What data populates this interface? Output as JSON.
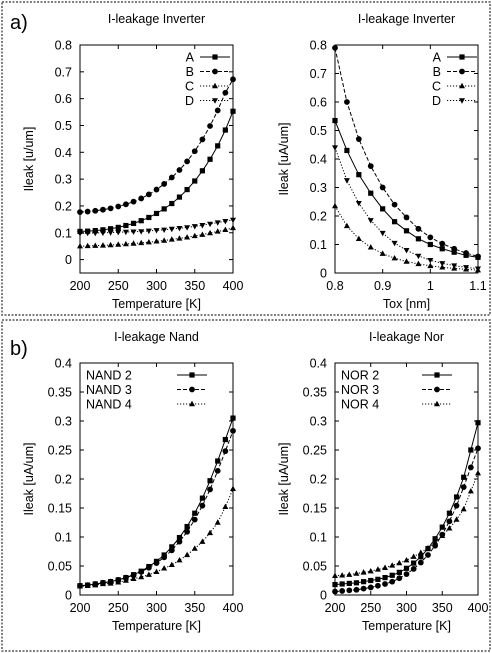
{
  "panels": [
    {
      "label": "a)"
    },
    {
      "label": "b)"
    }
  ],
  "chart_data": [
    {
      "type": "line",
      "title": "I-leakage Inverter",
      "xlabel": "Temperature [K]",
      "ylabel": "Ileak [u/um]",
      "xlim": [
        200,
        400
      ],
      "ylim": [
        -0.05,
        0.8
      ],
      "xticks": [
        200,
        250,
        300,
        350,
        400
      ],
      "yticks": [
        0,
        0.1,
        0.2,
        0.3,
        0.4,
        0.5,
        0.6,
        0.7,
        0.8
      ],
      "legend_position": "top-right",
      "grid": false,
      "x": [
        200,
        210,
        220,
        230,
        240,
        250,
        260,
        270,
        280,
        290,
        300,
        310,
        320,
        330,
        340,
        350,
        360,
        370,
        380,
        390,
        400
      ],
      "series": [
        {
          "name": "A",
          "marker": "square",
          "dash": "solid",
          "values": [
            0.105,
            0.106,
            0.108,
            0.111,
            0.115,
            0.12,
            0.127,
            0.135,
            0.145,
            0.157,
            0.172,
            0.189,
            0.209,
            0.233,
            0.261,
            0.293,
            0.331,
            0.374,
            0.424,
            0.483,
            0.553
          ]
        },
        {
          "name": "B",
          "marker": "circle",
          "dash": "dashed",
          "values": [
            0.177,
            0.179,
            0.182,
            0.186,
            0.191,
            0.198,
            0.206,
            0.216,
            0.228,
            0.243,
            0.261,
            0.282,
            0.306,
            0.334,
            0.366,
            0.404,
            0.448,
            0.498,
            0.556,
            0.622,
            0.672
          ]
        },
        {
          "name": "C",
          "marker": "triangle-up",
          "dash": "dotted",
          "values": [
            0.05,
            0.051,
            0.052,
            0.053,
            0.054,
            0.056,
            0.058,
            0.06,
            0.062,
            0.065,
            0.068,
            0.071,
            0.075,
            0.079,
            0.083,
            0.088,
            0.093,
            0.099,
            0.105,
            0.111,
            0.118
          ]
        },
        {
          "name": "D",
          "marker": "triangle-down",
          "dash": "dotted",
          "values": [
            0.098,
            0.099,
            0.099,
            0.1,
            0.101,
            0.102,
            0.103,
            0.104,
            0.105,
            0.107,
            0.109,
            0.111,
            0.114,
            0.117,
            0.12,
            0.124,
            0.128,
            0.133,
            0.138,
            0.143,
            0.148
          ]
        }
      ]
    },
    {
      "type": "line",
      "title": "I-leakage Inverter",
      "xlabel": "Tox [nm]",
      "ylabel": "Ileak [uA/um]",
      "xlim": [
        0.8,
        1.1
      ],
      "ylim": [
        0,
        0.8
      ],
      "xticks": [
        0.8,
        0.9,
        1,
        1.1
      ],
      "yticks": [
        0,
        0.1,
        0.2,
        0.3,
        0.4,
        0.5,
        0.6,
        0.7,
        0.8
      ],
      "legend_position": "top-right",
      "grid": false,
      "x": [
        0.8,
        0.825,
        0.85,
        0.875,
        0.9,
        0.925,
        0.95,
        0.975,
        1,
        1.025,
        1.05,
        1.075,
        1.1
      ],
      "series": [
        {
          "name": "A",
          "marker": "square",
          "dash": "solid",
          "values": [
            0.535,
            0.43,
            0.345,
            0.28,
            0.225,
            0.18,
            0.148,
            0.12,
            0.1,
            0.085,
            0.073,
            0.062,
            0.055
          ]
        },
        {
          "name": "B",
          "marker": "circle",
          "dash": "dashed",
          "values": [
            0.79,
            0.6,
            0.47,
            0.375,
            0.3,
            0.24,
            0.195,
            0.155,
            0.125,
            0.103,
            0.085,
            0.07,
            0.058
          ]
        },
        {
          "name": "C",
          "marker": "triangle-up",
          "dash": "dotted",
          "values": [
            0.235,
            0.165,
            0.12,
            0.09,
            0.068,
            0.052,
            0.04,
            0.032,
            0.025,
            0.02,
            0.016,
            0.013,
            0.01
          ]
        },
        {
          "name": "D",
          "marker": "triangle-down",
          "dash": "dotted",
          "values": [
            0.44,
            0.325,
            0.245,
            0.185,
            0.14,
            0.105,
            0.08,
            0.06,
            0.045,
            0.034,
            0.026,
            0.02,
            0.015
          ]
        }
      ]
    },
    {
      "type": "line",
      "title": "I-leakage Nand",
      "xlabel": "Temperature [K]",
      "ylabel": "Ileak [uA/um]",
      "xlim": [
        200,
        400
      ],
      "ylim": [
        0,
        0.4
      ],
      "xticks": [
        200,
        250,
        300,
        350,
        400
      ],
      "yticks": [
        0,
        0.05,
        0.1,
        0.15,
        0.2,
        0.25,
        0.3,
        0.35,
        0.4
      ],
      "legend_position": "top-left",
      "grid": false,
      "x": [
        200,
        210,
        220,
        230,
        240,
        250,
        260,
        270,
        280,
        290,
        300,
        310,
        320,
        330,
        340,
        350,
        360,
        370,
        380,
        390,
        400
      ],
      "series": [
        {
          "name": "NAND 2",
          "marker": "square",
          "dash": "solid",
          "values": [
            0.016,
            0.017,
            0.019,
            0.021,
            0.023,
            0.026,
            0.03,
            0.035,
            0.041,
            0.049,
            0.058,
            0.069,
            0.083,
            0.099,
            0.118,
            0.141,
            0.167,
            0.197,
            0.231,
            0.268,
            0.305
          ]
        },
        {
          "name": "NAND 3",
          "marker": "circle",
          "dash": "dashed",
          "values": [
            0.016,
            0.017,
            0.019,
            0.021,
            0.023,
            0.026,
            0.03,
            0.034,
            0.04,
            0.047,
            0.055,
            0.065,
            0.077,
            0.092,
            0.109,
            0.13,
            0.154,
            0.182,
            0.214,
            0.248,
            0.283
          ]
        },
        {
          "name": "NAND 4",
          "marker": "triangle-up",
          "dash": "dotted",
          "values": [
            0.015,
            0.016,
            0.017,
            0.019,
            0.02,
            0.022,
            0.025,
            0.028,
            0.031,
            0.035,
            0.04,
            0.046,
            0.052,
            0.06,
            0.069,
            0.08,
            0.092,
            0.107,
            0.125,
            0.152,
            0.183
          ]
        }
      ]
    },
    {
      "type": "line",
      "title": "I-leakage Nor",
      "xlabel": "Temperature [K]",
      "ylabel": "Ileak [uA/um]",
      "xlim": [
        200,
        400
      ],
      "ylim": [
        0,
        0.4
      ],
      "xticks": [
        200,
        250,
        300,
        350,
        400
      ],
      "yticks": [
        0,
        0.05,
        0.1,
        0.15,
        0.2,
        0.25,
        0.3,
        0.35,
        0.4
      ],
      "legend_position": "top-left",
      "grid": false,
      "x": [
        200,
        210,
        220,
        230,
        240,
        250,
        260,
        270,
        280,
        290,
        300,
        310,
        320,
        330,
        340,
        350,
        360,
        370,
        380,
        390,
        400
      ],
      "series": [
        {
          "name": "NOR 2",
          "marker": "square",
          "dash": "solid",
          "values": [
            0.018,
            0.019,
            0.02,
            0.021,
            0.023,
            0.025,
            0.027,
            0.03,
            0.034,
            0.039,
            0.046,
            0.055,
            0.066,
            0.08,
            0.097,
            0.117,
            0.141,
            0.169,
            0.203,
            0.25,
            0.297
          ]
        },
        {
          "name": "NOR 3",
          "marker": "circle",
          "dash": "dashed",
          "values": [
            0.006,
            0.007,
            0.008,
            0.009,
            0.011,
            0.013,
            0.016,
            0.019,
            0.023,
            0.029,
            0.036,
            0.045,
            0.056,
            0.069,
            0.085,
            0.104,
            0.127,
            0.154,
            0.186,
            0.22,
            0.253
          ]
        },
        {
          "name": "NOR 4",
          "marker": "triangle-up",
          "dash": "dotted",
          "values": [
            0.033,
            0.034,
            0.035,
            0.037,
            0.039,
            0.041,
            0.044,
            0.047,
            0.051,
            0.055,
            0.06,
            0.066,
            0.073,
            0.081,
            0.091,
            0.102,
            0.115,
            0.13,
            0.148,
            0.179,
            0.21
          ]
        }
      ]
    }
  ]
}
